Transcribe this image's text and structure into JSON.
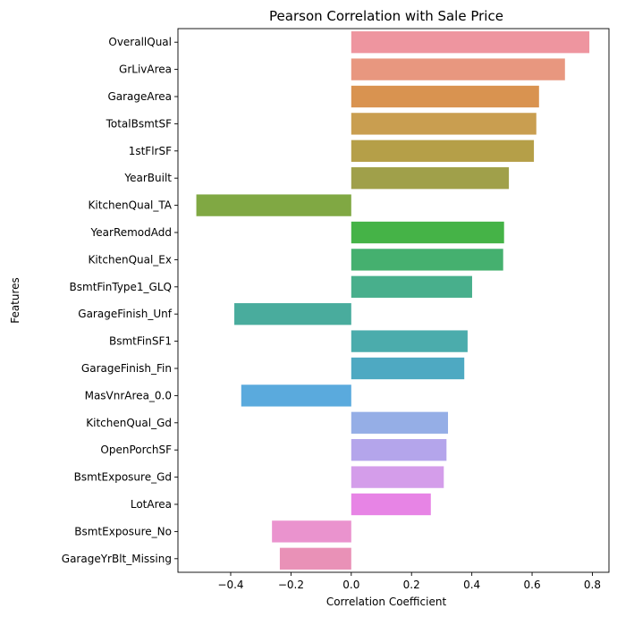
{
  "chart_data": {
    "type": "bar",
    "orientation": "horizontal",
    "title": "Pearson Correlation with Sale Price",
    "xlabel": "Correlation Coefficient",
    "ylabel": "Features",
    "xlim": [
      -0.575,
      0.855
    ],
    "xticks": [
      -0.4,
      -0.2,
      0.0,
      0.2,
      0.4,
      0.6,
      0.8
    ],
    "xtick_labels": [
      "−0.4",
      "−0.2",
      "0.0",
      "0.2",
      "0.4",
      "0.6",
      "0.8"
    ],
    "grid": false,
    "categories": [
      "OverallQual",
      "GrLivArea",
      "GarageArea",
      "TotalBsmtSF",
      "1stFlrSF",
      "YearBuilt",
      "KitchenQual_TA",
      "YearRemodAdd",
      "KitchenQual_Ex",
      "BsmtFinType1_GLQ",
      "GarageFinish_Unf",
      "BsmtFinSF1",
      "GarageFinish_Fin",
      "MasVnrArea_0.0",
      "KitchenQual_Gd",
      "OpenPorchSF",
      "BsmtExposure_Gd",
      "LotArea",
      "BsmtExposure_No",
      "GarageYrBlt_Missing"
    ],
    "values": [
      0.79,
      0.709,
      0.623,
      0.614,
      0.606,
      0.523,
      -0.514,
      0.507,
      0.504,
      0.401,
      -0.388,
      0.386,
      0.375,
      -0.365,
      0.321,
      0.316,
      0.307,
      0.264,
      -0.263,
      -0.237
    ],
    "colors": [
      "#ee959f",
      "#e8977f",
      "#d99350",
      "#c99e50",
      "#b59f48",
      "#a0a04a",
      "#80a843",
      "#45b347",
      "#45b06f",
      "#48af8c",
      "#49ac9d",
      "#4bacac",
      "#4ea9c2",
      "#5aaadd",
      "#95aee6",
      "#b4a5eb",
      "#d49dea",
      "#e784e5",
      "#ea93ce",
      "#e991b7"
    ]
  }
}
